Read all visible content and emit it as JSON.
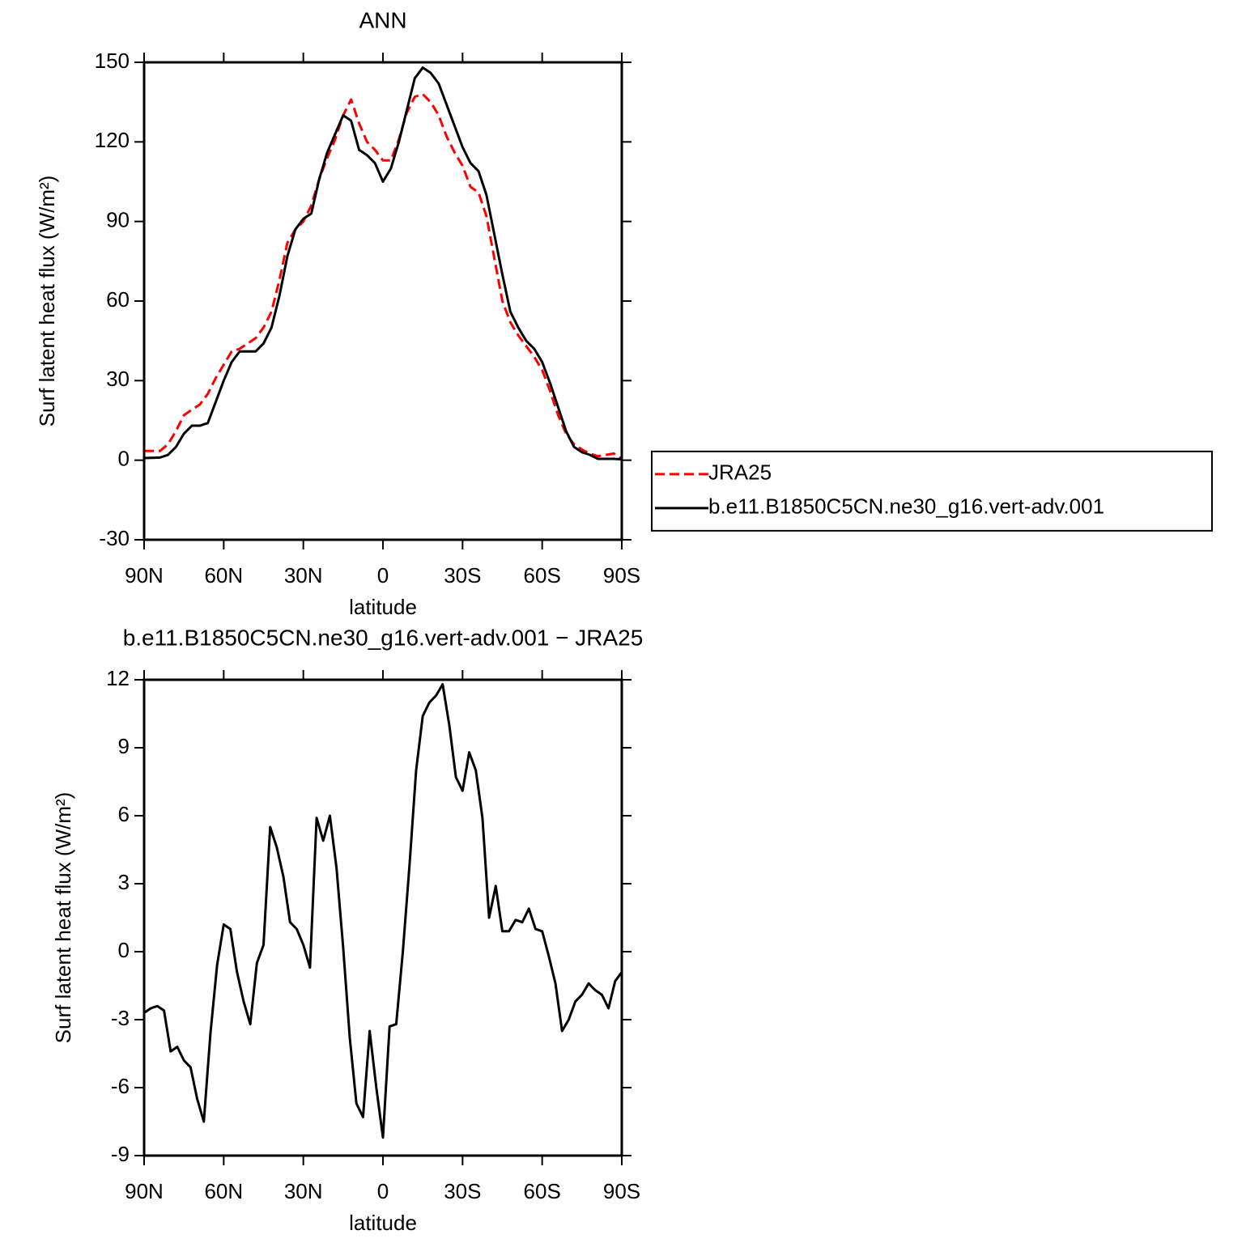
{
  "chart_data": [
    {
      "type": "line",
      "title": "ANN",
      "xlabel": "latitude",
      "ylabel": "Surf latent heat flux (W/m²)",
      "x": [
        90,
        87,
        84,
        81,
        78,
        75,
        72,
        69,
        66,
        63,
        60,
        57,
        54,
        51,
        48,
        45,
        42,
        39,
        36,
        33,
        30,
        27,
        24,
        21,
        18,
        15,
        12,
        9,
        6,
        3,
        0,
        -3,
        -6,
        -9,
        -12,
        -15,
        -18,
        -21,
        -24,
        -27,
        -30,
        -33,
        -36,
        -39,
        -42,
        -45,
        -48,
        -51,
        -54,
        -57,
        -60,
        -63,
        -66,
        -69,
        -72,
        -75,
        -78,
        -81,
        -84,
        -87,
        -90
      ],
      "series": [
        {
          "name": "JRA25",
          "color": "#ff0000",
          "linestyle": "dashed",
          "values": [
            3.5,
            3.5,
            3.5,
            6,
            11,
            17,
            19,
            21,
            25,
            31,
            36,
            41,
            42,
            44,
            46,
            50,
            56,
            68,
            82,
            87,
            90,
            96,
            106,
            114,
            121,
            130,
            136,
            127,
            120,
            117,
            113,
            113,
            121,
            131,
            137,
            138,
            135,
            130,
            122,
            116,
            111,
            103,
            101,
            92,
            76,
            60,
            52,
            47,
            43,
            39,
            34,
            26,
            17,
            10,
            6,
            4,
            2.5,
            1.5,
            2,
            2.5,
            0.5
          ]
        },
        {
          "name": "b.e11.B1850C5CN.ne30_g16.vert-adv.001",
          "color": "#000000",
          "linestyle": "solid",
          "values": [
            0.8,
            0.9,
            1,
            2,
            5,
            10,
            13,
            13,
            14,
            22,
            30,
            37,
            41,
            41,
            41,
            44,
            50,
            62,
            77,
            87,
            91,
            93,
            106,
            116,
            123,
            130,
            128,
            117,
            115,
            112,
            105,
            110,
            120,
            132,
            144,
            148,
            146,
            142,
            134,
            126,
            118,
            112,
            109,
            100,
            85,
            70,
            56,
            50,
            45,
            42,
            37,
            29,
            20,
            11,
            5,
            3,
            2,
            0.5,
            0.5,
            0.5,
            0.3
          ]
        }
      ],
      "xlim": [
        90,
        -90
      ],
      "xticks": [
        {
          "value": 90,
          "label": "90N"
        },
        {
          "value": 60,
          "label": "60N"
        },
        {
          "value": 30,
          "label": "30N"
        },
        0,
        {
          "value": -30,
          "label": "30S"
        },
        {
          "value": -60,
          "label": "60S"
        },
        {
          "value": -90,
          "label": "90S"
        }
      ],
      "ylim": [
        -30,
        150
      ],
      "yticks": [
        -30,
        0,
        30,
        60,
        90,
        120,
        150
      ],
      "legend": "right"
    },
    {
      "type": "line",
      "title": "b.e11.B1850C5CN.ne30_g16.vert-adv.001  −  JRA25",
      "xlabel": "latitude",
      "ylabel": "Surf latent heat flux (W/m²)",
      "x": [
        90,
        87.5,
        85,
        82.5,
        80,
        77.5,
        75,
        72.5,
        70,
        67.5,
        65,
        62.5,
        60,
        57.5,
        55,
        52.5,
        50,
        47.5,
        45,
        42.5,
        40,
        37.5,
        35,
        32.5,
        30,
        27.5,
        25,
        22.5,
        20,
        17.5,
        15,
        12.5,
        10,
        7.5,
        5,
        2.5,
        0,
        -2.5,
        -5,
        -7.5,
        -10,
        -12.5,
        -15,
        -17.5,
        -20,
        -22.5,
        -25,
        -27.5,
        -30,
        -32.5,
        -35,
        -37.5,
        -40,
        -42.5,
        -45,
        -47.5,
        -50,
        -52.5,
        -55,
        -57.5,
        -60,
        -62.5,
        -65,
        -67.5,
        -70,
        -72.5,
        -75,
        -77.5,
        -80,
        -82.5,
        -85,
        -87.5,
        -90
      ],
      "series": [
        {
          "color": "#000000",
          "linestyle": "solid",
          "values": [
            -2.7,
            -2.5,
            -2.4,
            -2.6,
            -4.4,
            -4.2,
            -4.8,
            -5.1,
            -6.5,
            -7.5,
            -3.6,
            -0.6,
            1.2,
            1.0,
            -0.9,
            -2.2,
            -3.2,
            -0.5,
            0.3,
            5.5,
            4.6,
            3.3,
            1.3,
            1.0,
            0.3,
            -0.7,
            5.9,
            4.9,
            6.0,
            3.7,
            0.2,
            -3.8,
            -6.7,
            -7.3,
            -3.5,
            -6.0,
            -8.2,
            -3.3,
            -3.2,
            0.0,
            3.8,
            8.0,
            10.4,
            11.0,
            11.3,
            11.8,
            10.0,
            7.7,
            7.1,
            8.8,
            8.0,
            5.9,
            1.5,
            2.9,
            0.9,
            0.9,
            1.4,
            1.3,
            1.9,
            1.0,
            0.9,
            -0.2,
            -1.4,
            -3.5,
            -3.0,
            -2.2,
            -1.9,
            -1.4,
            -1.7,
            -1.9,
            -2.5,
            -1.3,
            -0.9
          ]
        }
      ],
      "xlim": [
        90,
        -90
      ],
      "xticks": [
        {
          "value": 90,
          "label": "90N"
        },
        {
          "value": 60,
          "label": "60N"
        },
        {
          "value": 30,
          "label": "30N"
        },
        0,
        {
          "value": -30,
          "label": "30S"
        },
        {
          "value": -60,
          "label": "60S"
        },
        {
          "value": -90,
          "label": "90S"
        }
      ],
      "ylim": [
        -9,
        12
      ],
      "yticks": [
        -9,
        -6,
        -3,
        0,
        3,
        6,
        9,
        12
      ]
    }
  ]
}
